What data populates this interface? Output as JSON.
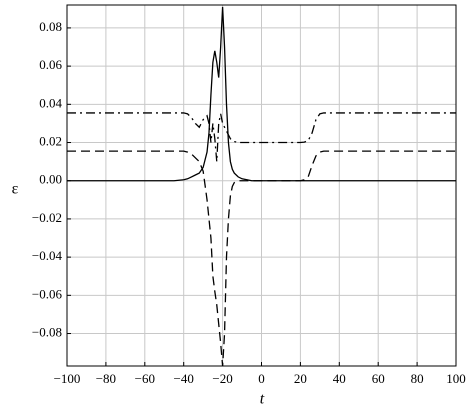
{
  "chart_data": {
    "type": "line",
    "x_label": "t",
    "y_label": "ε",
    "x": [
      -100,
      -60,
      -45,
      -40,
      -38,
      -36,
      -34,
      -32,
      -30,
      -28,
      -27,
      -26,
      -25,
      -24,
      -23,
      -22,
      -21,
      -20,
      -19,
      -18,
      -17,
      -16,
      -15,
      -14,
      -12,
      -10,
      -5,
      0,
      10,
      20,
      22,
      24,
      26,
      28,
      30,
      32,
      35,
      40,
      60,
      100
    ],
    "series": [
      {
        "color": "#000000",
        "dash": "solid",
        "values": [
          0,
          0,
          0,
          0.0005,
          0.001,
          0.002,
          0.003,
          0.004,
          0.007,
          0.015,
          0.025,
          0.045,
          0.062,
          0.068,
          0.062,
          0.054,
          0.07,
          0.091,
          0.07,
          0.04,
          0.02,
          0.01,
          0.006,
          0.004,
          0.002,
          0.001,
          0,
          0,
          0,
          0,
          0,
          0,
          0,
          0,
          0,
          0,
          0,
          0,
          0,
          0
        ]
      },
      {
        "color": "#000000",
        "dash": "long-dash",
        "values": [
          0.0155,
          0.0155,
          0.0155,
          0.0155,
          0.015,
          0.014,
          0.012,
          0.01,
          0.005,
          -0.01,
          -0.02,
          -0.03,
          -0.05,
          -0.058,
          -0.065,
          -0.075,
          -0.085,
          -0.097,
          -0.08,
          -0.04,
          -0.02,
          -0.008,
          -0.003,
          -0.001,
          0,
          0,
          0,
          0,
          0,
          0,
          0.0005,
          0.002,
          0.008,
          0.013,
          0.015,
          0.0155,
          0.0155,
          0.0155,
          0.0155,
          0.0155
        ]
      },
      {
        "color": "#000000",
        "dash": "dash-dot",
        "values": [
          0.0355,
          0.0355,
          0.0355,
          0.0355,
          0.035,
          0.033,
          0.03,
          0.028,
          0.032,
          0.034,
          0.03,
          0.02,
          0.03,
          0.022,
          0.01,
          0.03,
          0.035,
          0.03,
          0.028,
          0.026,
          0.024,
          0.022,
          0.021,
          0.0205,
          0.02,
          0.02,
          0.02,
          0.02,
          0.02,
          0.02,
          0.0202,
          0.021,
          0.025,
          0.032,
          0.035,
          0.0355,
          0.0355,
          0.0355,
          0.0355,
          0.0355
        ]
      }
    ],
    "xlim": [
      -100,
      100
    ],
    "ylim": [
      -0.097,
      0.092
    ],
    "xticks": [
      {
        "value": -100,
        "label": "−100"
      },
      {
        "value": -80,
        "label": "−80"
      },
      {
        "value": -60,
        "label": "−60"
      },
      {
        "value": -40,
        "label": "−40"
      },
      {
        "value": -20,
        "label": "−20"
      },
      0,
      20,
      40,
      60,
      80,
      100
    ],
    "yticks": [
      {
        "value": -0.08,
        "label": "−0.08"
      },
      {
        "value": -0.06,
        "label": "−0.06"
      },
      {
        "value": -0.04,
        "label": "−0.04"
      },
      {
        "value": -0.02,
        "label": "−0.02"
      },
      {
        "value": 0,
        "label": "0.00"
      },
      {
        "value": 0.02,
        "label": "0.02"
      },
      {
        "value": 0.04,
        "label": "0.04"
      },
      {
        "value": 0.06,
        "label": "0.06"
      },
      {
        "value": 0.08,
        "label": "0.08"
      }
    ],
    "grid": true
  }
}
